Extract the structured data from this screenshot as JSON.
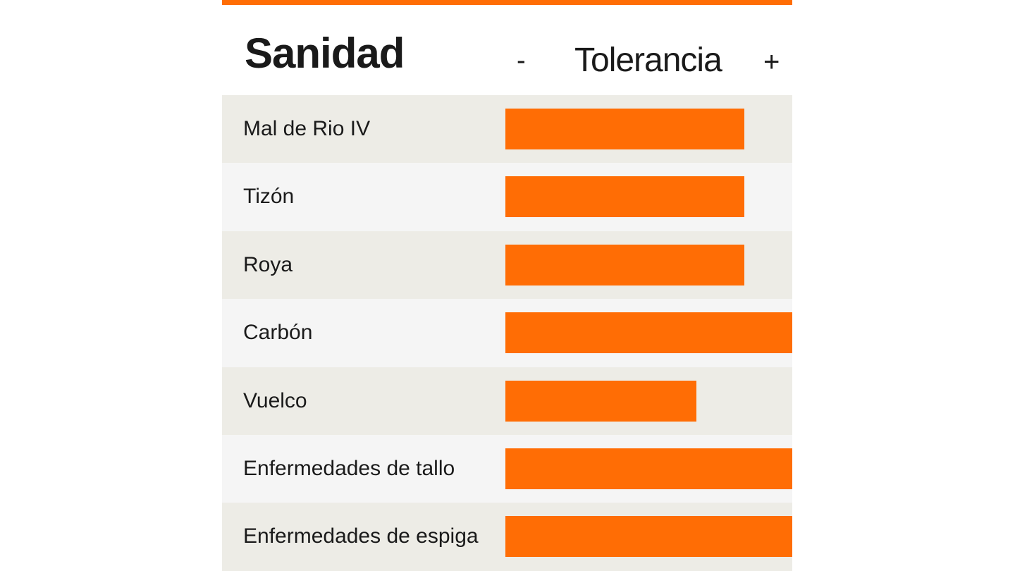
{
  "colors": {
    "accent": "#ff6d05",
    "row_odd": "#edece6",
    "row_even": "#f5f5f5",
    "text": "#1a1a1a"
  },
  "header": {
    "title": "Sanidad",
    "scale_min_symbol": "-",
    "scale_label": "Tolerancia",
    "scale_max_symbol": "+"
  },
  "chart_data": {
    "type": "bar",
    "orientation": "horizontal",
    "title": "Sanidad",
    "xlabel": "Tolerancia",
    "xlim": [
      0,
      6
    ],
    "categories": [
      "Mal de Rio IV",
      "Tizón",
      "Roya",
      "Carbón",
      "Vuelco",
      "Enfermedades de tallo",
      "Enfermedades de espiga"
    ],
    "values": [
      5,
      5,
      5,
      6,
      4,
      6,
      6
    ],
    "grid": false,
    "legend": "none"
  }
}
